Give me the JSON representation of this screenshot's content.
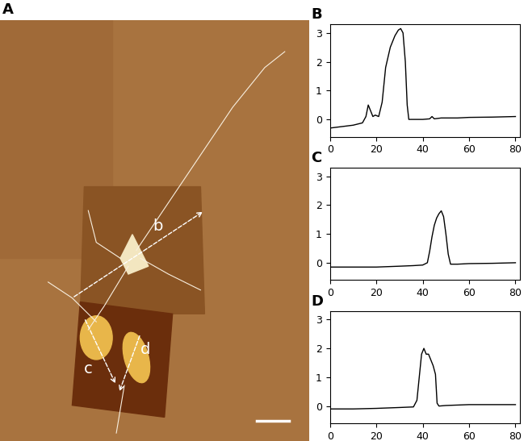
{
  "image": {
    "panel_label": "A",
    "markers": [
      "b",
      "c",
      "d"
    ]
  },
  "chart_data": [
    {
      "type": "line",
      "title": "B",
      "x": [
        0,
        5,
        10,
        14,
        15.5,
        16.5,
        17.5,
        18.5,
        19.5,
        21,
        22.5,
        24,
        26,
        28,
        29.5,
        30.5,
        31.5,
        32.5,
        33.3,
        34,
        36,
        40,
        43,
        44,
        45,
        48,
        55,
        60,
        70,
        80
      ],
      "values": [
        -0.3,
        -0.25,
        -0.2,
        -0.12,
        0.1,
        0.5,
        0.3,
        0.1,
        0.15,
        0.1,
        0.6,
        1.8,
        2.5,
        2.9,
        3.1,
        3.15,
        3.0,
        2.0,
        0.5,
        0.0,
        0.0,
        0.0,
        0.02,
        0.1,
        0.02,
        0.05,
        0.05,
        0.07,
        0.08,
        0.1
      ],
      "color": "#000000",
      "xlim": [
        0,
        82
      ],
      "xticks": [
        0,
        20,
        40,
        60,
        80
      ],
      "ylim": [
        -0.6,
        3.3
      ],
      "yticks": [
        0,
        1,
        2,
        3
      ]
    },
    {
      "type": "line",
      "title": "C",
      "x": [
        0,
        10,
        20,
        30,
        36,
        40,
        42,
        43,
        44,
        45,
        46,
        47,
        48,
        49,
        50,
        51,
        52,
        55,
        60,
        70,
        80
      ],
      "values": [
        -0.15,
        -0.15,
        -0.15,
        -0.12,
        -0.1,
        -0.08,
        0.0,
        0.4,
        0.9,
        1.3,
        1.55,
        1.7,
        1.8,
        1.6,
        1.0,
        0.3,
        -0.05,
        -0.05,
        -0.03,
        -0.02,
        0.0
      ],
      "color": "#000000",
      "xlim": [
        0,
        82
      ],
      "xticks": [
        0,
        20,
        40,
        60,
        80
      ],
      "ylim": [
        -0.6,
        3.3
      ],
      "yticks": [
        0,
        1,
        2,
        3
      ]
    },
    {
      "type": "line",
      "title": "D",
      "x": [
        0,
        10,
        20,
        30,
        36,
        37.5,
        38.5,
        39.5,
        40.5,
        41.5,
        42.5,
        43.5,
        44.5,
        45.5,
        46.2,
        47,
        50,
        60,
        70,
        80
      ],
      "values": [
        -0.1,
        -0.1,
        -0.08,
        -0.05,
        -0.03,
        0.2,
        1.0,
        1.8,
        2.0,
        1.8,
        1.8,
        1.6,
        1.4,
        1.1,
        0.1,
        0.0,
        0.02,
        0.05,
        0.05,
        0.05
      ],
      "color": "#000000",
      "xlim": [
        0,
        82
      ],
      "xticks": [
        0,
        20,
        40,
        60,
        80
      ],
      "ylim": [
        -0.6,
        3.3
      ],
      "yticks": [
        0,
        1,
        2,
        3
      ]
    }
  ]
}
